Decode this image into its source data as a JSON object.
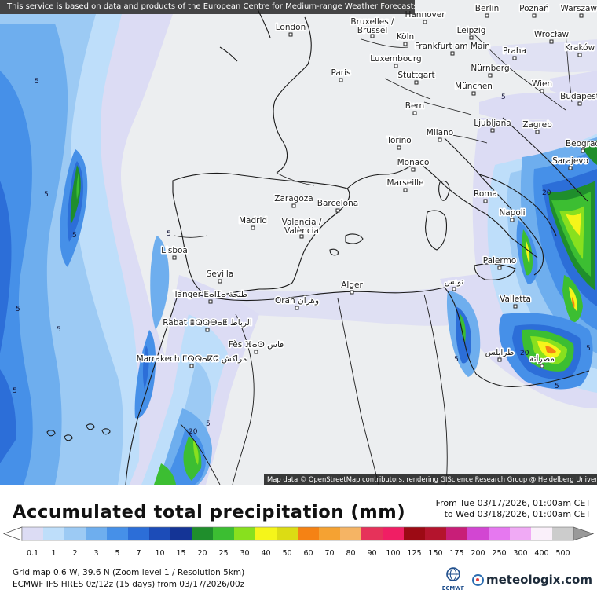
{
  "map": {
    "disclaimer": "This service is based on data and products of the European Centre for Medium-range Weather Forecasts (ECMWF)",
    "attribution": "Map data © OpenStreetMap contributors, rendering GIScience Research Group @ Heidelberg University",
    "cities": [
      {
        "name": "London"
      },
      {
        "name": "Hannover"
      },
      {
        "name": "Berlin"
      },
      {
        "name": "Poznań"
      },
      {
        "name": "Warszawa"
      },
      {
        "name": "Bruxelles / Brussel"
      },
      {
        "name": "Köln"
      },
      {
        "name": "Leipzig"
      },
      {
        "name": "Wrocław"
      },
      {
        "name": "Kraków"
      },
      {
        "name": "Frankfurt am Main"
      },
      {
        "name": "Praha"
      },
      {
        "name": "Luxembourg"
      },
      {
        "name": "Paris"
      },
      {
        "name": "Stuttgart"
      },
      {
        "name": "Nürnberg"
      },
      {
        "name": "München"
      },
      {
        "name": "Wien"
      },
      {
        "name": "Budapest"
      },
      {
        "name": "Bern"
      },
      {
        "name": "Ljubljana"
      },
      {
        "name": "Zagreb"
      },
      {
        "name": "Torino"
      },
      {
        "name": "Milano"
      },
      {
        "name": "Beograd"
      },
      {
        "name": "Monaco"
      },
      {
        "name": "Sarajevo"
      },
      {
        "name": "Marseille"
      },
      {
        "name": "Roma"
      },
      {
        "name": "Zaragoza"
      },
      {
        "name": "Barcelona"
      },
      {
        "name": "Napoli"
      },
      {
        "name": "Madrid"
      },
      {
        "name": "Valencia / València"
      },
      {
        "name": "Lisboa"
      },
      {
        "name": "Palermo"
      },
      {
        "name": "Sevilla"
      },
      {
        "name": "Alger"
      },
      {
        "name": "تونس"
      },
      {
        "name": "Tanger ⵟⴰⵏⵊⴰ طنجة"
      },
      {
        "name": "Valletta"
      },
      {
        "name": "Oran وهران"
      },
      {
        "name": "Rabat ⴻⵕⵕⴱⴰⵟ الرباط"
      },
      {
        "name": "طرابلس"
      },
      {
        "name": "Fès ⴼⴰⵙ فاس"
      },
      {
        "name": "مصراتة"
      },
      {
        "name": "Marrakech ⵎⵕⵕⴰⴽⵛ مراكش"
      }
    ],
    "contour_label": "5",
    "contour_label_20": "20"
  },
  "legend": {
    "title": "Accumulated total precipitation (mm)",
    "period_from": "From Tue 03/17/2026, 01:00am CET",
    "period_to": "to Wed 03/18/2026, 01:00am CET",
    "ticks": [
      "0.1",
      "1",
      "2",
      "3",
      "5",
      "7",
      "10",
      "15",
      "20",
      "25",
      "30",
      "40",
      "50",
      "60",
      "70",
      "80",
      "90",
      "100",
      "125",
      "150",
      "175",
      "200",
      "250",
      "300",
      "400",
      "500"
    ],
    "colors": [
      "#dcdcf4",
      "#bedefa",
      "#9ccaf4",
      "#6eaeee",
      "#4690e8",
      "#2c6ed8",
      "#1c4cb8",
      "#143496",
      "#1f8e2c",
      "#3cbe32",
      "#88e01e",
      "#f5f51a",
      "#dcdc14",
      "#f58214",
      "#f5a232",
      "#f5b464",
      "#e6325a",
      "#f01e64",
      "#9c0a14",
      "#b4142d",
      "#c81e78",
      "#d246d2",
      "#e678f0",
      "#f0aaf5",
      "#faf0fa",
      "#cccccc"
    ],
    "arrow_left_color": "#ffffff",
    "arrow_right_color": "#999999"
  },
  "meta": {
    "line1": "Grid map 0.6 W, 39.6 N (Zoom level 1 / Resolution 5km)",
    "line2": "ECMWF IFS HRES 0z/12z (15 days) from 03/17/2026/00z",
    "ecmwf_label": "ECMWF",
    "brand": "meteologix.com"
  }
}
